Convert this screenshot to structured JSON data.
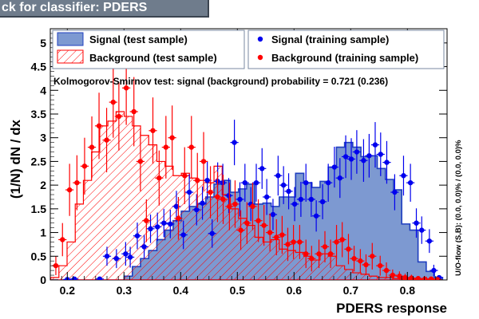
{
  "title": "ck for classifier: PDERS",
  "colors": {
    "signal_fill": "#7d99d1",
    "signal_line": "#1f3fbf",
    "background_line": "#ff0000",
    "signal_points": "#0000ee",
    "background_points": "#ff0000",
    "title_bar": "#6f7c8c",
    "canvas_bg": "#ffffff"
  },
  "chart_data": {
    "type": "histogram",
    "xlabel": "PDERS response",
    "ylabel": "(1/N) dN / dx",
    "overflow_label": "U/O-flow (S,B): (0.0, 0.0)% / (0.0, 0.0)%",
    "ks_text": "Kolmogorov-Smirnov test: signal (background) probability = 0.721 (0.236)",
    "xlim": [
      0.17,
      0.87
    ],
    "ylim": [
      0,
      5.3
    ],
    "xticks": [
      "0.2",
      "0.3",
      "0.4",
      "0.5",
      "0.6",
      "0.7",
      "0.8"
    ],
    "yticks": [
      "0",
      "0.5",
      "1",
      "1.5",
      "2",
      "2.5",
      "3",
      "3.5",
      "4",
      "4.5",
      "5"
    ],
    "bin_edges": [
      0.1708,
      0.1852,
      0.1996,
      0.214,
      0.2284,
      0.2428,
      0.2572,
      0.2716,
      0.286,
      0.3004,
      0.3148,
      0.3292,
      0.3436,
      0.358,
      0.3724,
      0.3868,
      0.4012,
      0.4156,
      0.43,
      0.4444,
      0.4588,
      0.4732,
      0.4876,
      0.502,
      0.5164,
      0.5308,
      0.5452,
      0.5596,
      0.574,
      0.5884,
      0.6028,
      0.6172,
      0.6316,
      0.646,
      0.6604,
      0.6748,
      0.6892,
      0.7036,
      0.718,
      0.7324,
      0.7468,
      0.7612,
      0.7756,
      0.79,
      0.8044,
      0.8188,
      0.8332,
      0.8476,
      0.862
    ],
    "legend": [
      {
        "label": "Signal (test sample)",
        "kind": "signal_hist"
      },
      {
        "label": "Background (test sample)",
        "kind": "background_hist"
      },
      {
        "label": "Signal (training sample)",
        "kind": "signal_points"
      },
      {
        "label": "Background (training sample)",
        "kind": "background_points"
      }
    ],
    "series": [
      {
        "name": "Signal (test sample)",
        "style": "filled_histogram",
        "values": [
          0,
          0,
          0,
          0,
          0,
          0,
          0,
          0,
          0,
          0.08,
          0.28,
          0.45,
          0.62,
          0.85,
          1.05,
          1.25,
          1.45,
          1.55,
          1.6,
          1.75,
          2.02,
          2.1,
          1.85,
          1.92,
          2.02,
          1.6,
          1.62,
          1.55,
          1.75,
          1.75,
          2.25,
          2.05,
          1.95,
          2.08,
          2.38,
          2.8,
          2.9,
          2.8,
          2.6,
          2.62,
          2.35,
          2.12,
          1.9,
          1.18,
          1.05,
          0.38,
          0.18,
          0.05
        ]
      },
      {
        "name": "Background (test sample)",
        "style": "hatched_histogram",
        "values": [
          0.05,
          0.3,
          0.8,
          1.6,
          2.1,
          2.7,
          3.25,
          3.35,
          3.55,
          3.45,
          3.25,
          3.05,
          2.85,
          2.5,
          2.4,
          2.2,
          2.25,
          2.15,
          2.1,
          2.05,
          2.4,
          1.8,
          1.5,
          1.3,
          1.15,
          0.9,
          0.8,
          0.85,
          0.65,
          0.62,
          0.58,
          0.5,
          0.42,
          0.55,
          0.5,
          0.3,
          0.22,
          0.15,
          0.12,
          0.08,
          0.05,
          0.05,
          0.03,
          0.02,
          0.02,
          0.01,
          0,
          0
        ]
      },
      {
        "name": "Signal (training sample)",
        "style": "points",
        "x": [
          0.2,
          0.2125,
          0.2571,
          0.27,
          0.2867,
          0.3029,
          0.311,
          0.3235,
          0.3356,
          0.3468,
          0.359,
          0.3704,
          0.3817,
          0.3925,
          0.4048,
          0.4152,
          0.4281,
          0.4384,
          0.447,
          0.4556,
          0.4653,
          0.4744,
          0.4848,
          0.4948,
          0.5045,
          0.5134,
          0.5238,
          0.5334,
          0.5436,
          0.5519,
          0.5629,
          0.5719,
          0.5815,
          0.5905,
          0.6011,
          0.6121,
          0.621,
          0.6304,
          0.6392,
          0.6504,
          0.6604,
          0.6713,
          0.681,
          0.6912,
          0.701,
          0.7107,
          0.7227,
          0.7325,
          0.7432,
          0.7528,
          0.7636,
          0.7776,
          0.7932,
          0.8054,
          0.8158,
          0.8253,
          0.8388,
          0.8466,
          0.856
        ],
        "y": [
          0.01,
          0.02,
          0.02,
          0.5,
          0.45,
          0.55,
          0.48,
          0.93,
          0.7,
          1.08,
          1.12,
          1.2,
          1.18,
          1.55,
          0.95,
          1.85,
          1.48,
          1.62,
          2.1,
          0.98,
          2.08,
          2.05,
          1.78,
          2.9,
          1.7,
          2.05,
          1.6,
          2.05,
          2.35,
          1.75,
          1.38,
          2.2,
          2.0,
          1.87,
          1.6,
          1.7,
          2.05,
          1.7,
          1.35,
          1.65,
          2.05,
          2.38,
          2.15,
          2.6,
          2.55,
          2.7,
          2.52,
          2.62,
          2.85,
          2.65,
          2.48,
          1.85,
          2.2,
          2.05,
          1.2,
          1.05,
          0.82,
          0.2,
          0.05
        ],
        "errors": [
          0.02,
          0.02,
          0.02,
          0.2,
          0.2,
          0.25,
          0.22,
          0.28,
          0.25,
          0.3,
          0.3,
          0.3,
          0.3,
          0.33,
          0.3,
          0.38,
          0.33,
          0.35,
          0.4,
          0.3,
          0.4,
          0.4,
          0.37,
          0.48,
          0.36,
          0.4,
          0.36,
          0.4,
          0.43,
          0.38,
          0.33,
          0.42,
          0.4,
          0.38,
          0.36,
          0.37,
          0.4,
          0.37,
          0.33,
          0.37,
          0.4,
          0.43,
          0.42,
          0.45,
          0.44,
          0.46,
          0.45,
          0.46,
          0.48,
          0.46,
          0.45,
          0.38,
          0.42,
          0.4,
          0.31,
          0.29,
          0.25,
          0.12,
          0.05
        ]
      },
      {
        "name": "Background (training sample)",
        "style": "points",
        "x": [
          0.1798,
          0.1915,
          0.204,
          0.217,
          0.2305,
          0.2433,
          0.256,
          0.2694,
          0.281,
          0.291,
          0.304,
          0.3175,
          0.329,
          0.3395,
          0.351,
          0.362,
          0.374,
          0.385,
          0.396,
          0.407,
          0.419,
          0.4295,
          0.4405,
          0.4525,
          0.465,
          0.475,
          0.486,
          0.496,
          0.506,
          0.517,
          0.527,
          0.537,
          0.547,
          0.5575,
          0.569,
          0.579,
          0.589,
          0.599,
          0.61,
          0.621,
          0.631,
          0.644,
          0.6545,
          0.6645,
          0.675,
          0.685,
          0.696,
          0.706,
          0.717,
          0.727,
          0.738,
          0.752,
          0.763,
          0.774,
          0.786,
          0.796,
          0.8072,
          0.819,
          0.831,
          0.842,
          0.853
        ],
        "y": [
          0.3,
          0.85,
          1.9,
          2.05,
          2.4,
          2.8,
          3.25,
          2.95,
          3.75,
          3.45,
          4.05,
          3.55,
          2.5,
          1.25,
          3.15,
          2.15,
          2.8,
          3.0,
          1.3,
          2.2,
          2.8,
          2.1,
          2.5,
          1.85,
          1.75,
          1.7,
          1.55,
          1.6,
          1.05,
          1.2,
          1.55,
          1.25,
          1.15,
          1.0,
          0.9,
          0.95,
          0.75,
          0.8,
          0.8,
          0.55,
          0.45,
          0.55,
          0.7,
          0.55,
          0.8,
          0.85,
          0.65,
          0.45,
          0.4,
          0.32,
          0.5,
          0.3,
          0.2,
          0.1,
          0.08,
          0.05,
          0.04,
          0.03,
          0.02,
          0.02,
          0.01
        ],
        "errors": [
          0.2,
          0.35,
          0.55,
          0.58,
          0.6,
          0.65,
          0.7,
          0.68,
          0.75,
          0.72,
          0.78,
          0.73,
          0.63,
          0.45,
          0.7,
          0.58,
          0.66,
          0.68,
          0.45,
          0.6,
          0.66,
          0.58,
          0.62,
          0.55,
          0.53,
          0.52,
          0.5,
          0.5,
          0.42,
          0.44,
          0.5,
          0.45,
          0.43,
          0.4,
          0.38,
          0.4,
          0.35,
          0.36,
          0.36,
          0.3,
          0.27,
          0.3,
          0.33,
          0.3,
          0.36,
          0.37,
          0.32,
          0.27,
          0.25,
          0.22,
          0.28,
          0.21,
          0.17,
          0.12,
          0.1,
          0.08,
          0.07,
          0.05,
          0.04,
          0.04,
          0.03
        ]
      }
    ]
  }
}
